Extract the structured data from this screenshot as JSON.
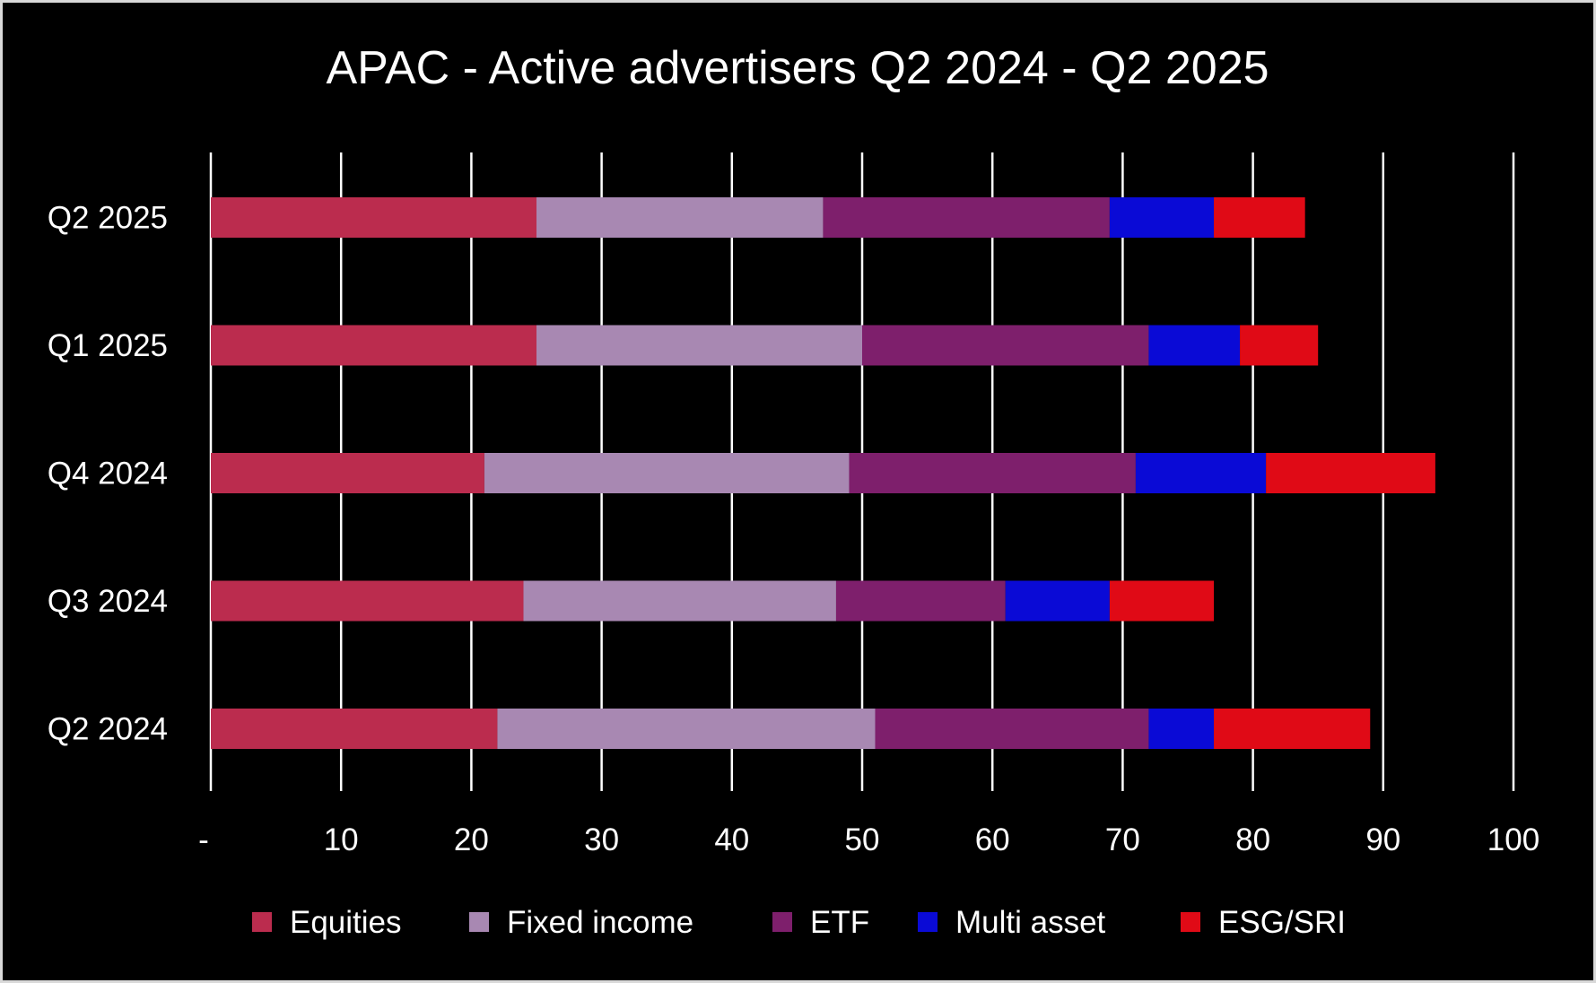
{
  "chart_data": {
    "type": "bar",
    "orientation": "horizontal",
    "stacked": true,
    "title": "APAC - Active advertisers Q2 2024 - Q2 2025",
    "categories": [
      "Q2 2025",
      "Q1 2025",
      "Q4 2024",
      "Q3 2024",
      "Q2 2024"
    ],
    "series": [
      {
        "name": "Equities",
        "color": "#bb2c4e",
        "values": [
          25,
          25,
          21,
          24,
          22
        ]
      },
      {
        "name": "Fixed income",
        "color": "#a888b2",
        "values": [
          22,
          25,
          28,
          24,
          29
        ]
      },
      {
        "name": "ETF",
        "color": "#7e1f6c",
        "values": [
          22,
          22,
          22,
          13,
          21
        ]
      },
      {
        "name": "Multi asset",
        "color": "#0a0ad6",
        "values": [
          8,
          7,
          10,
          8,
          5
        ]
      },
      {
        "name": "ESG/SRI",
        "color": "#e00a16",
        "values": [
          7,
          6,
          13,
          8,
          12
        ]
      }
    ],
    "xlim": [
      0,
      100
    ],
    "tick_labels": [
      "-",
      "10",
      "20",
      "30",
      "40",
      "50",
      "60",
      "70",
      "80",
      "90",
      "100"
    ],
    "grid": "vertical",
    "legend_position": "bottom",
    "background": "#000000",
    "text_color": "#ffffff"
  }
}
